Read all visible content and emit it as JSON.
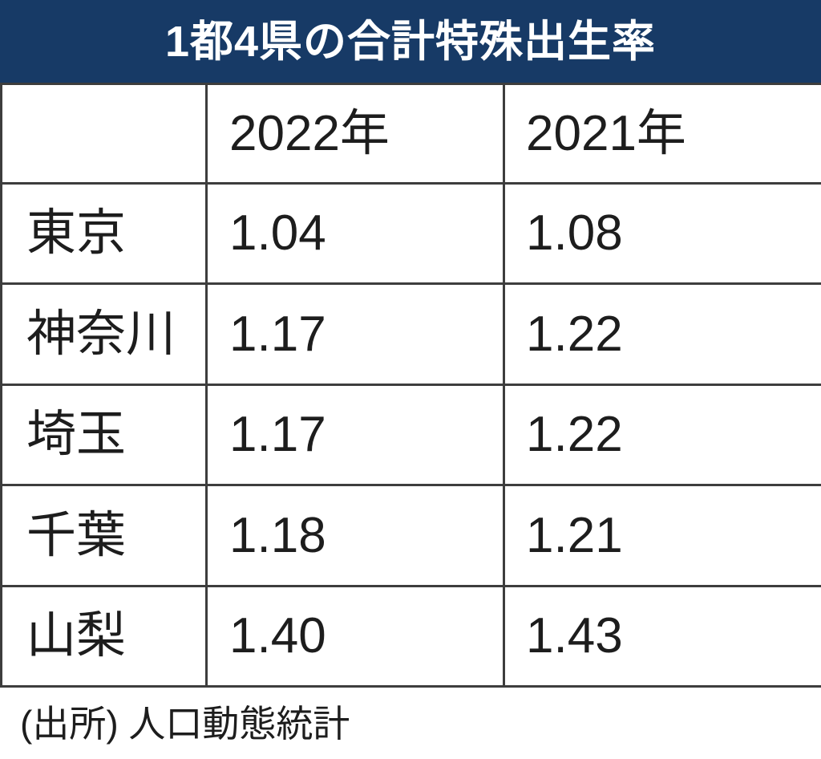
{
  "title": "1都4県の合計特殊出生率",
  "footer": "(出所) 人口動態統計",
  "colors": {
    "header_bg": "#173a66",
    "border": "#3d3d3d",
    "text": "#1d1d1d",
    "title_text": "#ffffff",
    "page_bg": "#ffffff"
  },
  "table": {
    "columns": [
      "",
      "2022年",
      "2021年"
    ],
    "rows": [
      {
        "label": "東京",
        "values": [
          "1.04",
          "1.08"
        ]
      },
      {
        "label": "神奈川",
        "values": [
          "1.17",
          "1.22"
        ]
      },
      {
        "label": "埼玉",
        "values": [
          "1.17",
          "1.22"
        ]
      },
      {
        "label": "千葉",
        "values": [
          "1.18",
          "1.21"
        ]
      },
      {
        "label": "山梨",
        "values": [
          "1.40",
          "1.43"
        ]
      }
    ]
  },
  "chart_data": {
    "type": "table",
    "title": "1都4県の合計特殊出生率",
    "categories": [
      "東京",
      "神奈川",
      "埼玉",
      "千葉",
      "山梨"
    ],
    "series": [
      {
        "name": "2022年",
        "values": [
          1.04,
          1.17,
          1.17,
          1.18,
          1.4
        ]
      },
      {
        "name": "2021年",
        "values": [
          1.08,
          1.22,
          1.22,
          1.21,
          1.43
        ]
      }
    ],
    "source": "(出所) 人口動態統計",
    "layout": {
      "grid": true,
      "legend_position": "none"
    }
  }
}
